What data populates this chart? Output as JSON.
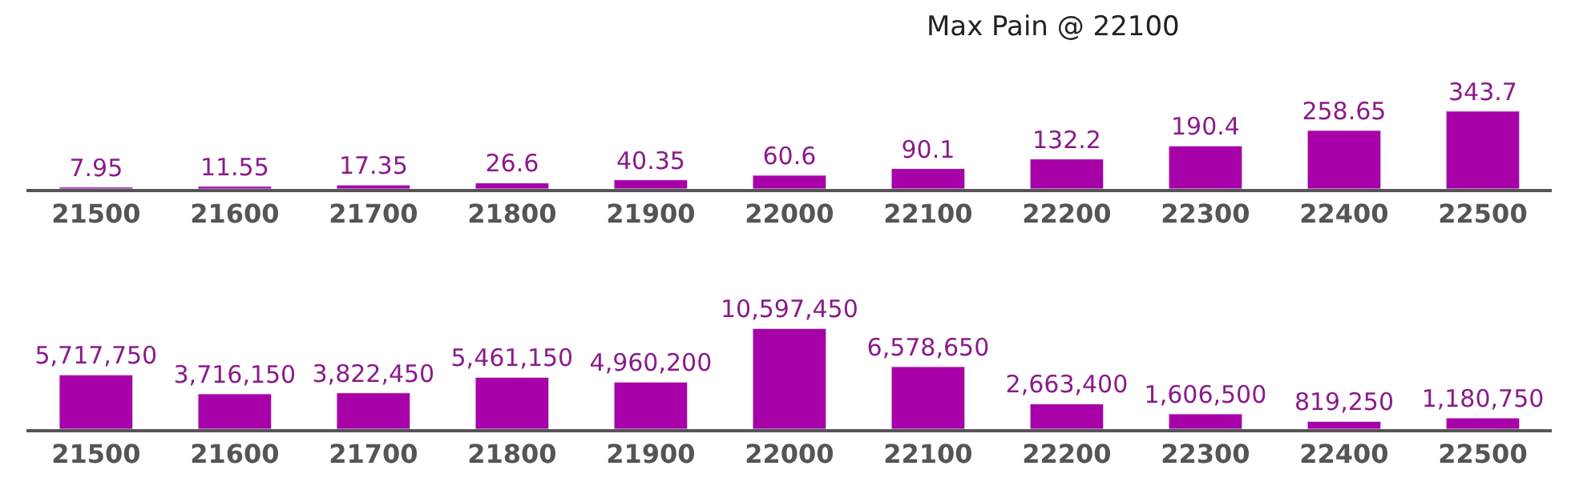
{
  "chart_data": [
    {
      "type": "bar",
      "title": "Max Pain @ 22100",
      "categories": [
        "21500",
        "21600",
        "21700",
        "21800",
        "21900",
        "22000",
        "22100",
        "22200",
        "22300",
        "22400",
        "22500"
      ],
      "values": [
        7.95,
        11.55,
        17.35,
        26.6,
        40.35,
        60.6,
        90.1,
        132.2,
        190.4,
        258.65,
        343.7
      ],
      "color": "#a800a8",
      "data_labels": true,
      "tick_labels": "x"
    },
    {
      "type": "bar",
      "categories": [
        "21500",
        "21600",
        "21700",
        "21800",
        "21900",
        "22000",
        "22100",
        "22200",
        "22300",
        "22400",
        "22500"
      ],
      "values": [
        5717750,
        3716150,
        3822450,
        5461150,
        4960200,
        10597450,
        6578650,
        2663400,
        1606500,
        819250,
        1180750
      ],
      "color": "#a800a8",
      "value_labels": [
        "5,717,750",
        "3,716,150",
        "3,822,450",
        "5,461,150",
        "4,960,200",
        "10,597,450",
        "6,578,650",
        "2,663,400",
        "1,606,500",
        "819,250",
        "1,180,750"
      ],
      "tick_labels": "x"
    }
  ]
}
